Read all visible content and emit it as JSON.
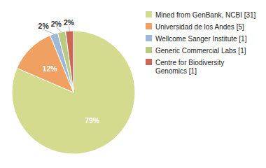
{
  "chart_data": {
    "type": "pie",
    "categories": [
      "Mined from GenBank, NCBI [31]",
      "Universidad de los Andes [5]",
      "Wellcome Sanger Institute [1]",
      "Generic Commercial Labs [1]",
      "Centre for Biodiversity\nGenomics [1]"
    ],
    "values": [
      79,
      12,
      2,
      2,
      2
    ],
    "value_labels": [
      "79%",
      "12%",
      "2%",
      "2%",
      "2%"
    ],
    "colors": [
      "#d4db8e",
      "#f0a060",
      "#a0b8d8",
      "#b8cc80",
      "#cc6655"
    ],
    "data_labels": true,
    "legend": "right"
  }
}
